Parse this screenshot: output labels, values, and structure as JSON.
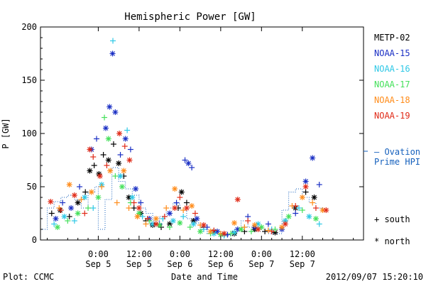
{
  "chart_data": {
    "type": "scatter",
    "title": "Hemispheric Power [GW]",
    "ylabel": "P [GW]",
    "xlabel": "Date and Time",
    "ylim": [
      0,
      200
    ],
    "yticks": [
      0,
      50,
      100,
      150,
      200
    ],
    "xlim_hours": [
      -17,
      78
    ],
    "xticks": [
      {
        "h": 0,
        "top": "0:00",
        "bottom": "Sep 5"
      },
      {
        "h": 12,
        "top": "12:00",
        "bottom": "Sep 5"
      },
      {
        "h": 24,
        "top": "0:00",
        "bottom": "Sep 6"
      },
      {
        "h": 36,
        "top": "12:00",
        "bottom": "Sep 6"
      },
      {
        "h": 48,
        "top": "0:00",
        "bottom": "Sep 7"
      },
      {
        "h": 60,
        "top": "12:00",
        "bottom": "Sep 7"
      }
    ],
    "legend": [
      {
        "name": "METP-02",
        "color": "#000000"
      },
      {
        "name": "NOAA-15",
        "color": "#1a2fc4"
      },
      {
        "name": "NOAA-16",
        "color": "#2ec8e6"
      },
      {
        "name": "NOAA-17",
        "color": "#44e05a"
      },
      {
        "name": "NOAA-18",
        "color": "#ff8c1a"
      },
      {
        "name": "NOAA-19",
        "color": "#e02a17"
      }
    ],
    "ovation": {
      "name_line1": "— Ovation",
      "name_line2": "Prime HPI",
      "color": "#1560bd",
      "level": 85
    },
    "marker_notes": {
      "south": "+ south",
      "north": "* north"
    },
    "footer_left": "Plot: CCMC",
    "footer_right": "2012/09/07 15:20:10",
    "series": [
      {
        "name": "METP-02",
        "color": "#000000",
        "points": [
          [
            -13.7,
            25,
            "+"
          ],
          [
            -11.2,
            28,
            "*"
          ],
          [
            -8.5,
            22,
            "+"
          ],
          [
            -6,
            35,
            "*"
          ],
          [
            -3.8,
            45,
            "+"
          ],
          [
            -2.5,
            65,
            "*"
          ],
          [
            -1.2,
            70,
            "+"
          ],
          [
            0.2,
            62,
            "*"
          ],
          [
            1.5,
            80,
            "+"
          ],
          [
            3,
            75,
            "*"
          ],
          [
            4.5,
            90,
            "+"
          ],
          [
            6,
            72,
            "*"
          ],
          [
            7.5,
            60,
            "+"
          ],
          [
            9,
            40,
            "*"
          ],
          [
            10.5,
            30,
            "+"
          ],
          [
            12.5,
            25,
            "*"
          ],
          [
            14,
            18,
            "+"
          ],
          [
            16,
            14,
            "*"
          ],
          [
            18.5,
            12,
            "+"
          ],
          [
            21,
            15,
            "*"
          ],
          [
            23.5,
            30,
            "+"
          ],
          [
            24.5,
            45,
            "*"
          ],
          [
            26,
            35,
            "+"
          ],
          [
            28,
            18,
            "*"
          ],
          [
            31,
            12,
            "+"
          ],
          [
            34,
            8,
            "*"
          ],
          [
            37,
            5,
            "+"
          ],
          [
            40,
            6,
            "*"
          ],
          [
            43,
            8,
            "+"
          ],
          [
            46,
            10,
            "*"
          ],
          [
            49,
            8,
            "+"
          ],
          [
            52,
            7,
            "*"
          ],
          [
            55,
            18,
            "+"
          ],
          [
            58,
            30,
            "*"
          ],
          [
            61,
            45,
            "+"
          ],
          [
            63.5,
            40,
            "*"
          ]
        ]
      },
      {
        "name": "NOAA-15",
        "color": "#1a2fc4",
        "points": [
          [
            -12.5,
            20,
            "*"
          ],
          [
            -10.5,
            35,
            "+"
          ],
          [
            -8,
            30,
            "*"
          ],
          [
            -5.5,
            50,
            "+"
          ],
          [
            -2,
            85,
            "*"
          ],
          [
            -0.5,
            95,
            "+"
          ],
          [
            2.2,
            105,
            "*"
          ],
          [
            3.3,
            125,
            "*"
          ],
          [
            4.2,
            175,
            "*"
          ],
          [
            5,
            120,
            "*"
          ],
          [
            6.5,
            80,
            "+"
          ],
          [
            8,
            95,
            "*"
          ],
          [
            9.5,
            85,
            "+"
          ],
          [
            11,
            48,
            "*"
          ],
          [
            12.5,
            35,
            "+"
          ],
          [
            15,
            20,
            "*"
          ],
          [
            18,
            15,
            "+"
          ],
          [
            21,
            25,
            "*"
          ],
          [
            23,
            35,
            "+"
          ],
          [
            25.5,
            75,
            "+"
          ],
          [
            26.5,
            72,
            "*"
          ],
          [
            27.5,
            68,
            "+"
          ],
          [
            29,
            20,
            "*"
          ],
          [
            32,
            12,
            "+"
          ],
          [
            35,
            8,
            "*"
          ],
          [
            38,
            5,
            "+"
          ],
          [
            41,
            10,
            "*"
          ],
          [
            44,
            22,
            "+"
          ],
          [
            46,
            12,
            "*"
          ],
          [
            50,
            15,
            "+"
          ],
          [
            54,
            10,
            "*"
          ],
          [
            58,
            25,
            "+"
          ],
          [
            61,
            55,
            "*"
          ],
          [
            63,
            77,
            "*"
          ],
          [
            65,
            52,
            "+"
          ]
        ]
      },
      {
        "name": "NOAA-16",
        "color": "#2ec8e6",
        "points": [
          [
            -13,
            15,
            "+"
          ],
          [
            -10,
            22,
            "*"
          ],
          [
            -7,
            18,
            "+"
          ],
          [
            -4,
            40,
            "*"
          ],
          [
            -1.5,
            30,
            "+"
          ],
          [
            1,
            52,
            "*"
          ],
          [
            4.3,
            187,
            "+"
          ],
          [
            6.5,
            60,
            "*"
          ],
          [
            8.5,
            103,
            "+"
          ],
          [
            10,
            40,
            "*"
          ],
          [
            13,
            22,
            "+"
          ],
          [
            16,
            15,
            "*"
          ],
          [
            19,
            20,
            "+"
          ],
          [
            22,
            18,
            "*"
          ],
          [
            25,
            22,
            "+"
          ],
          [
            28,
            15,
            "*"
          ],
          [
            31,
            10,
            "+"
          ],
          [
            34,
            6,
            "*"
          ],
          [
            37,
            4,
            "+"
          ],
          [
            40,
            7,
            "*"
          ],
          [
            43,
            12,
            "+"
          ],
          [
            47,
            15,
            "*"
          ],
          [
            51,
            10,
            "+"
          ],
          [
            55,
            18,
            "*"
          ],
          [
            59,
            30,
            "+"
          ],
          [
            62,
            22,
            "*"
          ],
          [
            65,
            15,
            "+"
          ]
        ]
      },
      {
        "name": "NOAA-17",
        "color": "#44e05a",
        "points": [
          [
            -12,
            12,
            "*"
          ],
          [
            -9,
            18,
            "+"
          ],
          [
            -6,
            25,
            "*"
          ],
          [
            -3,
            30,
            "+"
          ],
          [
            0,
            40,
            "*"
          ],
          [
            1.8,
            115,
            "+"
          ],
          [
            3,
            95,
            "*"
          ],
          [
            5,
            60,
            "+"
          ],
          [
            7,
            50,
            "*"
          ],
          [
            9.5,
            35,
            "+"
          ],
          [
            12,
            25,
            "*"
          ],
          [
            15,
            18,
            "+"
          ],
          [
            18,
            14,
            "*"
          ],
          [
            21,
            12,
            "+"
          ],
          [
            24,
            16,
            "*"
          ],
          [
            27,
            12,
            "+"
          ],
          [
            30,
            8,
            "*"
          ],
          [
            33,
            6,
            "+"
          ],
          [
            36,
            5,
            "*"
          ],
          [
            39,
            6,
            "+"
          ],
          [
            42,
            10,
            "*"
          ],
          [
            45,
            8,
            "+"
          ],
          [
            48,
            12,
            "*"
          ],
          [
            52,
            10,
            "+"
          ],
          [
            56,
            22,
            "*"
          ],
          [
            60,
            28,
            "+"
          ],
          [
            64,
            20,
            "*"
          ]
        ]
      },
      {
        "name": "NOAA-18",
        "color": "#ff8c1a",
        "points": [
          [
            -11.5,
            30,
            "+"
          ],
          [
            -8.5,
            52,
            "*"
          ],
          [
            -5,
            38,
            "+"
          ],
          [
            -2,
            45,
            "*"
          ],
          [
            1,
            50,
            "+"
          ],
          [
            3.5,
            65,
            "*"
          ],
          [
            5.5,
            35,
            "+"
          ],
          [
            7.5,
            65,
            "*"
          ],
          [
            9,
            30,
            "+"
          ],
          [
            11.5,
            22,
            "*"
          ],
          [
            14,
            15,
            "+"
          ],
          [
            17,
            20,
            "*"
          ],
          [
            20,
            30,
            "+"
          ],
          [
            22.5,
            48,
            "*"
          ],
          [
            25,
            28,
            "+"
          ],
          [
            27.5,
            32,
            "*"
          ],
          [
            30,
            14,
            "+"
          ],
          [
            33,
            8,
            "*"
          ],
          [
            36,
            6,
            "+"
          ],
          [
            40,
            16,
            "*"
          ],
          [
            43,
            12,
            "+"
          ],
          [
            46,
            14,
            "*"
          ],
          [
            50,
            9,
            "+"
          ],
          [
            54,
            12,
            "*"
          ],
          [
            57,
            32,
            "+"
          ],
          [
            60,
            40,
            "*"
          ],
          [
            63,
            35,
            "+"
          ],
          [
            66,
            28,
            "*"
          ]
        ]
      },
      {
        "name": "NOAA-19",
        "color": "#e02a17",
        "points": [
          [
            -14,
            36,
            "*"
          ],
          [
            -11,
            28,
            "+"
          ],
          [
            -7,
            42,
            "*"
          ],
          [
            -4,
            25,
            "+"
          ],
          [
            -2.5,
            85,
            "*"
          ],
          [
            -1.5,
            78,
            "+"
          ],
          [
            0.5,
            60,
            "*"
          ],
          [
            2.5,
            70,
            "+"
          ],
          [
            6.2,
            100,
            "*"
          ],
          [
            7.8,
            88,
            "+"
          ],
          [
            9.2,
            75,
            "*"
          ],
          [
            10.5,
            35,
            "+"
          ],
          [
            12,
            30,
            "*"
          ],
          [
            14.5,
            20,
            "+"
          ],
          [
            17,
            15,
            "*"
          ],
          [
            19.5,
            22,
            "+"
          ],
          [
            22.5,
            30,
            "*"
          ],
          [
            24,
            40,
            "+"
          ],
          [
            26,
            30,
            "*"
          ],
          [
            28.5,
            25,
            "+"
          ],
          [
            31,
            14,
            "*"
          ],
          [
            34,
            9,
            "+"
          ],
          [
            37,
            6,
            "*"
          ],
          [
            41,
            38,
            "*"
          ],
          [
            44,
            18,
            "+"
          ],
          [
            47,
            10,
            "*"
          ],
          [
            51,
            8,
            "+"
          ],
          [
            55,
            15,
            "*"
          ],
          [
            58,
            32,
            "+"
          ],
          [
            61,
            50,
            "*"
          ],
          [
            64,
            30,
            "+"
          ],
          [
            67,
            28,
            "*"
          ]
        ]
      }
    ],
    "ovation_profile": [
      [
        -17,
        10
      ],
      [
        -15,
        10
      ],
      [
        -15,
        30
      ],
      [
        -13,
        30
      ],
      [
        -13,
        36
      ],
      [
        -11,
        36
      ],
      [
        -11,
        40
      ],
      [
        -9,
        40
      ],
      [
        -9,
        42
      ],
      [
        -7,
        42
      ],
      [
        -7,
        38
      ],
      [
        -5,
        38
      ],
      [
        -5,
        30
      ],
      [
        -3,
        30
      ],
      [
        -3,
        45
      ],
      [
        -1,
        45
      ],
      [
        -1,
        50
      ],
      [
        0,
        50
      ],
      [
        0,
        10
      ],
      [
        2,
        10
      ],
      [
        2,
        38
      ],
      [
        4,
        38
      ],
      [
        4,
        68
      ],
      [
        6,
        68
      ],
      [
        6,
        55
      ],
      [
        8,
        55
      ],
      [
        8,
        48
      ],
      [
        10,
        48
      ],
      [
        10,
        42
      ],
      [
        12,
        42
      ],
      [
        12,
        30
      ],
      [
        14,
        30
      ],
      [
        14,
        25
      ],
      [
        16,
        25
      ],
      [
        16,
        18
      ],
      [
        18,
        18
      ],
      [
        18,
        22
      ],
      [
        20,
        22
      ],
      [
        20,
        30
      ],
      [
        22,
        30
      ],
      [
        22,
        34
      ],
      [
        24,
        34
      ],
      [
        24,
        28
      ],
      [
        26,
        28
      ],
      [
        26,
        20
      ],
      [
        28,
        20
      ],
      [
        28,
        16
      ],
      [
        30,
        16
      ],
      [
        30,
        10
      ],
      [
        32,
        10
      ],
      [
        32,
        6
      ],
      [
        36,
        6
      ],
      [
        36,
        4
      ],
      [
        40,
        4
      ],
      [
        40,
        10
      ],
      [
        42,
        10
      ],
      [
        42,
        18
      ],
      [
        44,
        18
      ],
      [
        44,
        12
      ],
      [
        46,
        12
      ],
      [
        46,
        8
      ],
      [
        50,
        8
      ],
      [
        50,
        6
      ],
      [
        54,
        6
      ],
      [
        54,
        28
      ],
      [
        56,
        28
      ],
      [
        56,
        45
      ],
      [
        58,
        45
      ],
      [
        58,
        48
      ],
      [
        60,
        48
      ],
      [
        60,
        40
      ],
      [
        62,
        40
      ],
      [
        62,
        35
      ],
      [
        64,
        35
      ],
      [
        64,
        30
      ],
      [
        66,
        30
      ]
    ]
  }
}
